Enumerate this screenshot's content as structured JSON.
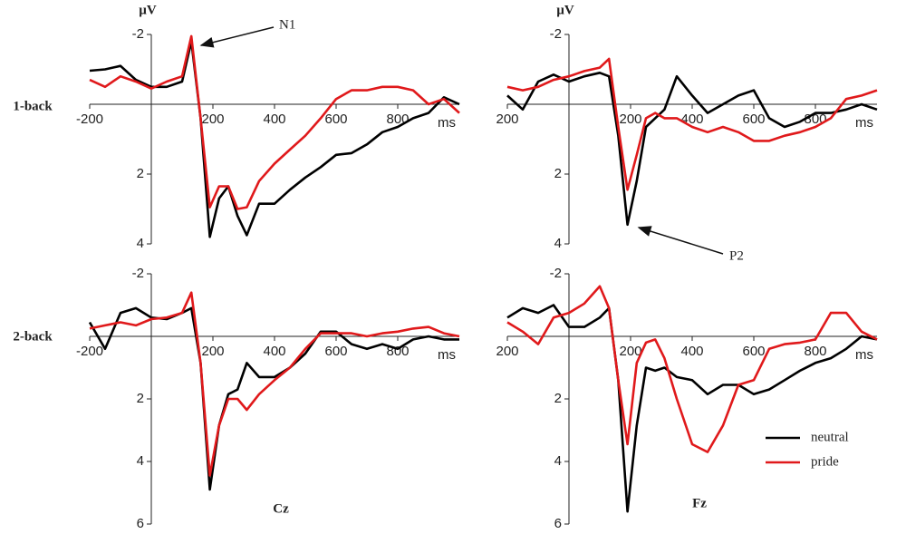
{
  "chart_data": [
    {
      "type": "line",
      "row_label": "1-back",
      "y_label": "µV",
      "x_label": "ms",
      "annotation": "N1",
      "y_inverted": true,
      "xlim": [
        -200,
        1000
      ],
      "xticks": [
        -200,
        200,
        400,
        600,
        800
      ],
      "ylim": [
        -2,
        4
      ],
      "yticks": [
        -2,
        2,
        4
      ],
      "x": [
        -200,
        -150,
        -100,
        -50,
        0,
        50,
        100,
        130,
        160,
        190,
        220,
        250,
        280,
        310,
        350,
        400,
        450,
        500,
        550,
        600,
        650,
        700,
        750,
        800,
        850,
        900,
        950,
        1000
      ],
      "series": [
        {
          "color": "#000000",
          "values": [
            -0.96,
            -1.0,
            -1.1,
            -0.7,
            -0.5,
            -0.5,
            -0.65,
            -1.8,
            0.4,
            3.8,
            2.7,
            2.35,
            3.2,
            3.75,
            2.85,
            2.85,
            2.45,
            2.1,
            1.8,
            1.45,
            1.4,
            1.15,
            0.8,
            0.65,
            0.4,
            0.25,
            -0.2,
            0
          ]
        },
        {
          "color": "#e0191b",
          "values": [
            -0.7,
            -0.5,
            -0.8,
            -0.65,
            -0.45,
            -0.65,
            -0.8,
            -1.95,
            0.4,
            2.95,
            2.35,
            2.35,
            3.0,
            2.95,
            2.2,
            1.7,
            1.3,
            0.9,
            0.4,
            -0.15,
            -0.4,
            -0.4,
            -0.5,
            -0.5,
            -0.4,
            0,
            -0.15,
            0.25
          ]
        }
      ]
    },
    {
      "type": "line",
      "y_label": "µV",
      "x_label": "ms",
      "annotation": "P2",
      "y_inverted": true,
      "xlim": [
        -200,
        1000
      ],
      "xticks": [
        {
          "value": -200,
          "label": "200"
        },
        200,
        400,
        600,
        800
      ],
      "ylim": [
        -2,
        4
      ],
      "yticks": [
        -2,
        2,
        4
      ],
      "x": [
        -200,
        -150,
        -100,
        -50,
        0,
        50,
        100,
        130,
        160,
        190,
        220,
        250,
        280,
        310,
        350,
        400,
        450,
        500,
        550,
        600,
        650,
        700,
        750,
        800,
        850,
        900,
        950,
        1000
      ],
      "series": [
        {
          "color": "#000000",
          "values": [
            -0.25,
            0.15,
            -0.65,
            -0.85,
            -0.65,
            -0.8,
            -0.9,
            -0.8,
            0.9,
            3.45,
            2.2,
            0.65,
            0.4,
            0.15,
            -0.8,
            -0.25,
            0.25,
            0,
            -0.25,
            -0.4,
            0.4,
            0.65,
            0.5,
            0.25,
            0.25,
            0.15,
            0,
            0.15
          ]
        },
        {
          "color": "#e0191b",
          "values": [
            -0.5,
            -0.4,
            -0.5,
            -0.7,
            -0.8,
            -0.95,
            -1.05,
            -1.3,
            0.65,
            2.45,
            1.45,
            0.4,
            0.25,
            0.4,
            0.4,
            0.65,
            0.8,
            0.65,
            0.8,
            1.05,
            1.05,
            0.9,
            0.8,
            0.65,
            0.4,
            -0.15,
            -0.25,
            -0.4
          ]
        }
      ]
    },
    {
      "type": "line",
      "row_label": "2-back",
      "x_label": "ms",
      "electrode": "Cz",
      "y_inverted": true,
      "xlim": [
        -200,
        1000
      ],
      "xticks": [
        -200,
        200,
        400,
        600,
        800
      ],
      "ylim": [
        -2,
        6
      ],
      "yticks": [
        -2,
        2,
        4,
        6
      ],
      "x": [
        -200,
        -150,
        -100,
        -50,
        0,
        50,
        100,
        130,
        160,
        190,
        220,
        250,
        280,
        310,
        350,
        400,
        450,
        500,
        550,
        600,
        650,
        700,
        750,
        800,
        850,
        900,
        950,
        1000
      ],
      "series": [
        {
          "color": "#000000",
          "values": [
            -0.45,
            0.4,
            -0.75,
            -0.9,
            -0.6,
            -0.55,
            -0.75,
            -0.9,
            0.85,
            4.9,
            2.85,
            1.85,
            1.7,
            0.85,
            1.3,
            1.3,
            1.0,
            0.55,
            -0.15,
            -0.15,
            0.25,
            0.4,
            0.25,
            0.4,
            0.1,
            0,
            0.1,
            0.1
          ]
        },
        {
          "color": "#e0191b",
          "values": [
            -0.25,
            -0.35,
            -0.45,
            -0.35,
            -0.55,
            -0.6,
            -0.75,
            -1.4,
            0.85,
            4.45,
            2.85,
            2.0,
            2.0,
            2.35,
            1.85,
            1.4,
            1.0,
            0.4,
            -0.1,
            -0.1,
            -0.1,
            0,
            -0.1,
            -0.15,
            -0.25,
            -0.3,
            -0.1,
            0
          ]
        }
      ]
    },
    {
      "type": "line",
      "x_label": "ms",
      "electrode": "Fz",
      "y_inverted": true,
      "legend": "lower right",
      "xlim": [
        -200,
        1000
      ],
      "xticks": [
        {
          "value": -200,
          "label": "200"
        },
        200,
        400,
        600,
        800
      ],
      "ylim": [
        -2,
        6
      ],
      "yticks": [
        -2,
        2,
        4,
        6
      ],
      "x": [
        -200,
        -150,
        -100,
        -50,
        0,
        50,
        100,
        130,
        160,
        190,
        220,
        250,
        280,
        310,
        350,
        400,
        450,
        500,
        550,
        600,
        650,
        700,
        750,
        800,
        850,
        900,
        950,
        1000
      ],
      "series": [
        {
          "name": "neutral",
          "color": "#000000",
          "values": [
            -0.6,
            -0.9,
            -0.75,
            -1.0,
            -0.3,
            -0.3,
            -0.6,
            -0.9,
            1.4,
            5.6,
            2.85,
            1.0,
            1.1,
            1.0,
            1.3,
            1.4,
            1.85,
            1.55,
            1.55,
            1.85,
            1.7,
            1.4,
            1.1,
            0.85,
            0.7,
            0.4,
            0,
            0.1
          ]
        },
        {
          "name": "pride",
          "color": "#e0191b",
          "values": [
            -0.45,
            -0.15,
            0.25,
            -0.6,
            -0.75,
            -1.05,
            -1.6,
            -0.9,
            1.4,
            3.45,
            0.85,
            0.2,
            0.1,
            0.7,
            2.0,
            3.45,
            3.7,
            2.85,
            1.55,
            1.4,
            0.4,
            0.25,
            0.2,
            0.1,
            -0.75,
            -0.75,
            -0.15,
            0.1
          ]
        }
      ]
    }
  ]
}
